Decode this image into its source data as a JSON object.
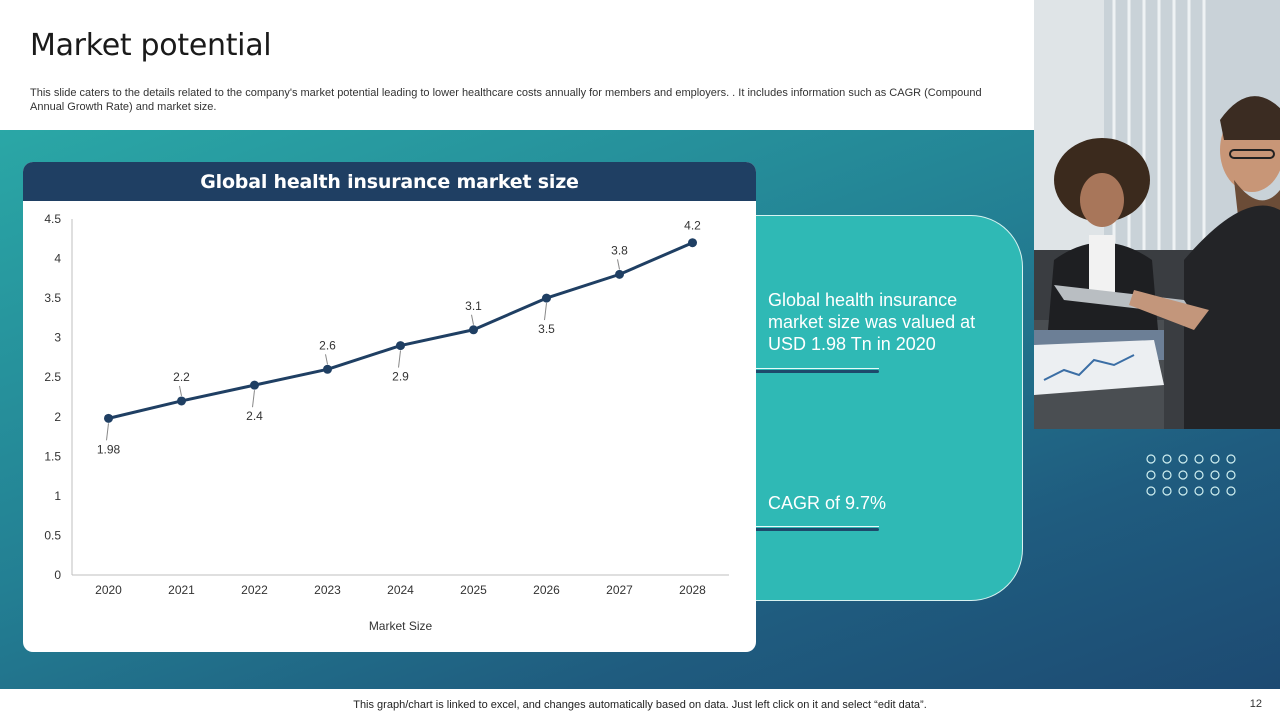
{
  "slide": {
    "title": "Market potential",
    "description": "This slide caters to the details related to the company's market potential leading to lower healthcare costs annually for members and employers. . It includes information such as CAGR (Compound Annual Growth Rate) and market size.",
    "footer": "This graph/chart is linked to excel,  and changes automatically based on data. Just left click on it and select “edit data”.",
    "page_number": "12"
  },
  "info": {
    "market_value": "Global health insurance market size was valued at USD 1.98 Tn in 2020",
    "cagr": "CAGR of 9.7%"
  },
  "colors": {
    "band_start": "#2aa7a6",
    "band_end": "#1d4a72",
    "card": "#2fb9b5",
    "header": "#1f3f63",
    "line": "#1f3f63"
  },
  "chart_data": {
    "type": "line",
    "title": "Global health insurance market size",
    "xlabel": "Market Size",
    "ylabel": "",
    "categories": [
      "2020",
      "2021",
      "2022",
      "2023",
      "2024",
      "2025",
      "2026",
      "2027",
      "2028"
    ],
    "series": [
      {
        "name": "Market Size",
        "values": [
          1.98,
          2.2,
          2.4,
          2.6,
          2.9,
          3.1,
          3.5,
          3.8,
          4.2
        ]
      }
    ],
    "data_labels": [
      "1.98",
      "2.2",
      "2.4",
      "2.6",
      "2.9",
      "3.1",
      "3.5",
      "3.8",
      "4.2"
    ],
    "label_positions": [
      "below",
      "above",
      "below",
      "above",
      "below",
      "above",
      "below",
      "above",
      "above"
    ],
    "y_ticks": [
      "0",
      "0.5",
      "1",
      "1.5",
      "2",
      "2.5",
      "3",
      "3.5",
      "4",
      "4.5"
    ],
    "ylim": [
      0,
      4.5
    ],
    "grid": false,
    "legend": "none"
  }
}
